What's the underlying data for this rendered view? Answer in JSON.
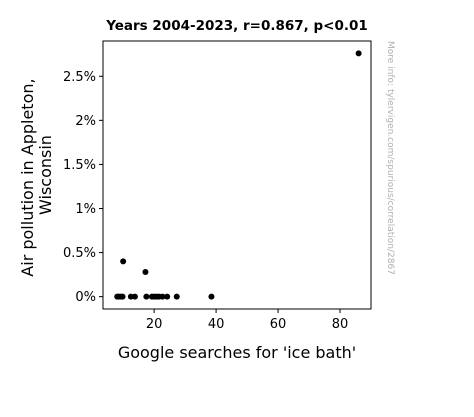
{
  "chart_data": {
    "type": "scatter",
    "title": "Years 2004-2023, r=0.867, p<0.01",
    "xlabel": "Google searches for 'ice bath'",
    "ylabel_lines": [
      "Air pollution in Appleton,",
      "Wisconsin"
    ],
    "side_note": "More info: tylervigen.com/spurious/correlation/2867",
    "xlim": [
      3.5,
      90
    ],
    "ylim": [
      -0.14,
      2.9
    ],
    "x_ticks": [
      20,
      40,
      60,
      80
    ],
    "x_tick_labels": [
      "20",
      "40",
      "60",
      "80"
    ],
    "y_ticks": [
      0,
      0.5,
      1,
      1.5,
      2,
      2.5
    ],
    "y_tick_labels": [
      "0%",
      "0.5%",
      "1%",
      "1.5%",
      "2%",
      "2.5%"
    ],
    "grid": false,
    "points": [
      {
        "x": 8.1,
        "y": 0.0
      },
      {
        "x": 8.6,
        "y": 0.0
      },
      {
        "x": 9.2,
        "y": 0.0
      },
      {
        "x": 9.8,
        "y": 0.0
      },
      {
        "x": 10.0,
        "y": 0.4
      },
      {
        "x": 12.5,
        "y": 0.0
      },
      {
        "x": 13.8,
        "y": 0.0
      },
      {
        "x": 17.2,
        "y": 0.28
      },
      {
        "x": 17.5,
        "y": 0.0
      },
      {
        "x": 19.3,
        "y": 0.0
      },
      {
        "x": 20.1,
        "y": 0.0
      },
      {
        "x": 20.8,
        "y": 0.0
      },
      {
        "x": 21.6,
        "y": 0.0
      },
      {
        "x": 22.7,
        "y": 0.0
      },
      {
        "x": 24.2,
        "y": 0.0
      },
      {
        "x": 27.3,
        "y": 0.0
      },
      {
        "x": 38.5,
        "y": 0.0
      },
      {
        "x": 86.0,
        "y": 2.76
      }
    ],
    "marker_color": "#000000"
  }
}
